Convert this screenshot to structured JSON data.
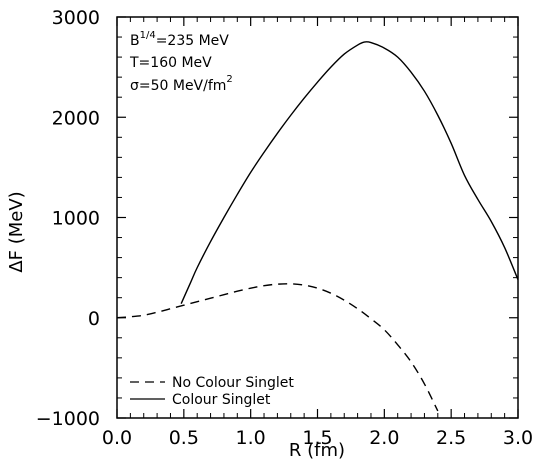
{
  "chart_data": {
    "type": "line",
    "title": "",
    "xlabel": "R (fm)",
    "ylabel": "ΔF (MeV)",
    "xlim": [
      0.0,
      3.0
    ],
    "ylim": [
      -1000,
      3000
    ],
    "x_ticks": [
      "0.0",
      "0.5",
      "1.0",
      "1.5",
      "2.0",
      "2.5",
      "3.0"
    ],
    "y_ticks": [
      "3000",
      "2000",
      "1000",
      "0",
      "−1000"
    ],
    "grid": false,
    "legend_position": "bottom-left",
    "annotations": [
      {
        "text": "B",
        "sup": "1/4",
        "tail": "=235 MeV"
      },
      {
        "text": "T=160 MeV",
        "sup": "",
        "tail": ""
      },
      {
        "text": "σ=50 MeV/fm",
        "sup": "2",
        "tail": ""
      }
    ],
    "series": [
      {
        "name": "No Colour Singlet",
        "style": "dashed",
        "color": "#000000",
        "x": [
          0.0,
          0.1,
          0.2,
          0.3,
          0.4,
          0.5,
          0.6,
          0.7,
          0.8,
          0.9,
          1.0,
          1.1,
          1.2,
          1.3,
          1.4,
          1.5,
          1.6,
          1.7,
          1.8,
          1.9,
          2.0,
          2.1,
          2.2,
          2.3,
          2.4
        ],
        "y": [
          0,
          10,
          25,
          55,
          90,
          125,
          160,
          195,
          230,
          265,
          295,
          320,
          335,
          338,
          325,
          295,
          245,
          175,
          90,
          -10,
          -120,
          -270,
          -440,
          -660,
          -930
        ]
      },
      {
        "name": "Colour Singlet",
        "style": "solid",
        "color": "#000000",
        "x": [
          0.48,
          0.55,
          0.6,
          0.7,
          0.8,
          0.9,
          1.0,
          1.1,
          1.2,
          1.3,
          1.4,
          1.5,
          1.6,
          1.7,
          1.8,
          1.85,
          1.9,
          2.0,
          2.1,
          2.2,
          2.3,
          2.4,
          2.5,
          2.6,
          2.7,
          2.8,
          2.9,
          3.0
        ],
        "y": [
          140,
          350,
          500,
          760,
          1000,
          1230,
          1450,
          1650,
          1840,
          2020,
          2190,
          2350,
          2500,
          2630,
          2720,
          2750,
          2745,
          2690,
          2600,
          2450,
          2260,
          2020,
          1740,
          1420,
          1180,
          960,
          700,
          380
        ]
      }
    ]
  }
}
